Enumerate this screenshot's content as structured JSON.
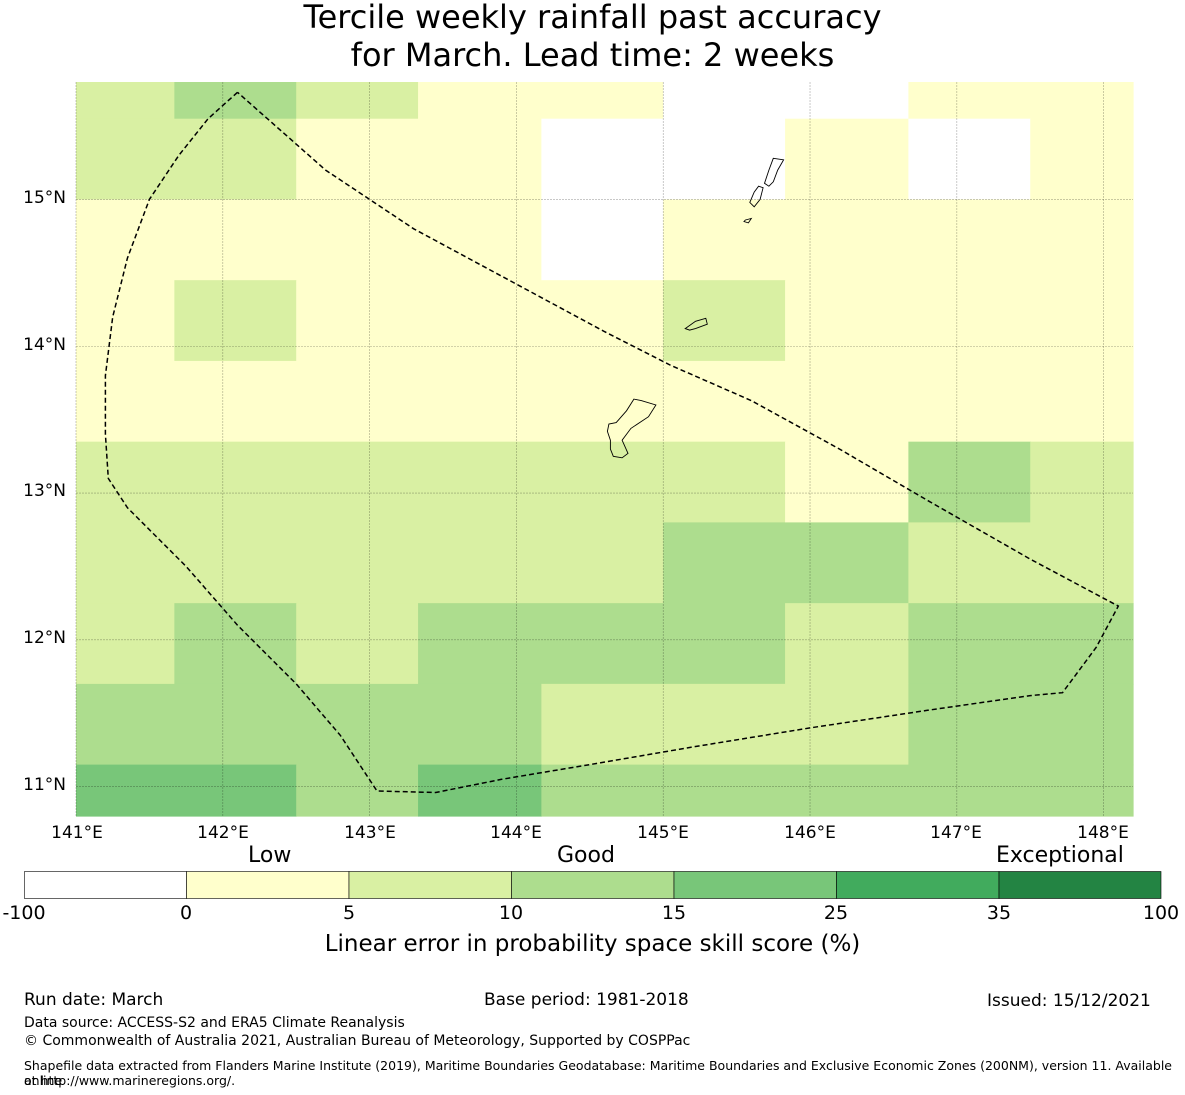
{
  "title": {
    "line1": "Tercile weekly rainfall past accuracy",
    "line2": "for March. Lead time: 2 weeks"
  },
  "map": {
    "lon_range": [
      141.0,
      148.2
    ],
    "lat_range": [
      10.8,
      15.8
    ],
    "lon_ticks": [
      "141°E",
      "142°E",
      "143°E",
      "144°E",
      "145°E",
      "146°E",
      "147°E",
      "148°E"
    ],
    "lat_ticks": [
      "15°N",
      "14°N",
      "13°N",
      "12°N",
      "11°N"
    ],
    "colors": {
      "lt0": "#ffffff",
      "0-5": "#ffffcc",
      "5-10": "#d9f0a3",
      "10-15": "#addd8e",
      "15-25": "#78c679",
      "25-35": "#41ab5d",
      "35-100": "#238443"
    },
    "skill_cells": [
      {
        "lon": [
          141.0,
          141.67
        ],
        "lat": [
          15.55,
          15.8
        ],
        "bin": "5-10"
      },
      {
        "lon": [
          141.67,
          142.5
        ],
        "lat": [
          15.55,
          15.8
        ],
        "bin": "10-15"
      },
      {
        "lon": [
          142.5,
          143.33
        ],
        "lat": [
          15.55,
          15.8
        ],
        "bin": "5-10"
      },
      {
        "lon": [
          143.33,
          145.0
        ],
        "lat": [
          15.55,
          15.8
        ],
        "bin": "0-5"
      },
      {
        "lon": [
          145.0,
          146.67
        ],
        "lat": [
          15.55,
          15.8
        ],
        "bin": "lt0"
      },
      {
        "lon": [
          146.67,
          148.2
        ],
        "lat": [
          15.55,
          15.8
        ],
        "bin": "0-5"
      },
      {
        "lon": [
          141.0,
          142.5
        ],
        "lat": [
          15.0,
          15.55
        ],
        "bin": "5-10"
      },
      {
        "lon": [
          142.5,
          144.17
        ],
        "lat": [
          15.0,
          15.55
        ],
        "bin": "0-5"
      },
      {
        "lon": [
          144.17,
          145.83
        ],
        "lat": [
          15.0,
          15.55
        ],
        "bin": "lt0"
      },
      {
        "lon": [
          145.83,
          146.67
        ],
        "lat": [
          15.0,
          15.55
        ],
        "bin": "0-5"
      },
      {
        "lon": [
          146.67,
          147.5
        ],
        "lat": [
          15.0,
          15.55
        ],
        "bin": "lt0"
      },
      {
        "lon": [
          147.5,
          148.2
        ],
        "lat": [
          15.0,
          15.55
        ],
        "bin": "0-5"
      },
      {
        "lon": [
          141.0,
          144.17
        ],
        "lat": [
          14.45,
          15.0
        ],
        "bin": "0-5"
      },
      {
        "lon": [
          144.17,
          145.0
        ],
        "lat": [
          14.45,
          15.0
        ],
        "bin": "lt0"
      },
      {
        "lon": [
          145.0,
          148.2
        ],
        "lat": [
          14.45,
          15.0
        ],
        "bin": "0-5"
      },
      {
        "lon": [
          141.0,
          141.67
        ],
        "lat": [
          13.9,
          14.45
        ],
        "bin": "0-5"
      },
      {
        "lon": [
          141.67,
          142.5
        ],
        "lat": [
          13.9,
          14.45
        ],
        "bin": "5-10"
      },
      {
        "lon": [
          142.5,
          145.0
        ],
        "lat": [
          13.9,
          14.45
        ],
        "bin": "0-5"
      },
      {
        "lon": [
          145.0,
          145.83
        ],
        "lat": [
          13.9,
          14.45
        ],
        "bin": "5-10"
      },
      {
        "lon": [
          145.83,
          148.2
        ],
        "lat": [
          13.9,
          14.45
        ],
        "bin": "0-5"
      },
      {
        "lon": [
          141.0,
          148.2
        ],
        "lat": [
          13.35,
          13.9
        ],
        "bin": "0-5"
      },
      {
        "lon": [
          141.0,
          145.83
        ],
        "lat": [
          12.8,
          13.35
        ],
        "bin": "5-10"
      },
      {
        "lon": [
          145.83,
          146.67
        ],
        "lat": [
          12.8,
          13.35
        ],
        "bin": "0-5"
      },
      {
        "lon": [
          146.67,
          147.5
        ],
        "lat": [
          12.8,
          13.35
        ],
        "bin": "10-15"
      },
      {
        "lon": [
          147.5,
          148.2
        ],
        "lat": [
          12.8,
          13.35
        ],
        "bin": "5-10"
      },
      {
        "lon": [
          141.0,
          145.0
        ],
        "lat": [
          12.25,
          12.8
        ],
        "bin": "5-10"
      },
      {
        "lon": [
          145.0,
          146.67
        ],
        "lat": [
          12.25,
          12.8
        ],
        "bin": "10-15"
      },
      {
        "lon": [
          146.67,
          148.2
        ],
        "lat": [
          12.25,
          12.8
        ],
        "bin": "5-10"
      },
      {
        "lon": [
          141.0,
          141.67
        ],
        "lat": [
          11.7,
          12.25
        ],
        "bin": "5-10"
      },
      {
        "lon": [
          141.67,
          142.5
        ],
        "lat": [
          11.7,
          12.25
        ],
        "bin": "10-15"
      },
      {
        "lon": [
          142.5,
          143.33
        ],
        "lat": [
          11.7,
          12.25
        ],
        "bin": "5-10"
      },
      {
        "lon": [
          143.33,
          145.83
        ],
        "lat": [
          11.7,
          12.25
        ],
        "bin": "10-15"
      },
      {
        "lon": [
          145.83,
          146.67
        ],
        "lat": [
          11.7,
          12.25
        ],
        "bin": "5-10"
      },
      {
        "lon": [
          146.67,
          148.2
        ],
        "lat": [
          11.7,
          12.25
        ],
        "bin": "10-15"
      },
      {
        "lon": [
          141.0,
          144.17
        ],
        "lat": [
          11.15,
          11.7
        ],
        "bin": "10-15"
      },
      {
        "lon": [
          144.17,
          146.67
        ],
        "lat": [
          11.15,
          11.7
        ],
        "bin": "5-10"
      },
      {
        "lon": [
          146.67,
          148.2
        ],
        "lat": [
          11.15,
          11.7
        ],
        "bin": "10-15"
      },
      {
        "lon": [
          141.0,
          142.5
        ],
        "lat": [
          10.8,
          11.15
        ],
        "bin": "15-25"
      },
      {
        "lon": [
          142.5,
          143.33
        ],
        "lat": [
          10.8,
          11.15
        ],
        "bin": "10-15"
      },
      {
        "lon": [
          143.33,
          144.17
        ],
        "lat": [
          10.8,
          11.15
        ],
        "bin": "15-25"
      },
      {
        "lon": [
          144.17,
          148.2
        ],
        "lat": [
          10.8,
          11.15
        ],
        "bin": "10-15"
      }
    ],
    "eez_boundary": [
      [
        142.1,
        15.73
      ],
      [
        141.9,
        15.55
      ],
      [
        141.7,
        15.3
      ],
      [
        141.5,
        15.0
      ],
      [
        141.35,
        14.6
      ],
      [
        141.25,
        14.2
      ],
      [
        141.2,
        13.8
      ],
      [
        141.2,
        13.4
      ],
      [
        141.22,
        13.1
      ],
      [
        141.35,
        12.9
      ],
      [
        141.75,
        12.5
      ],
      [
        142.1,
        12.1
      ],
      [
        142.5,
        11.7
      ],
      [
        142.8,
        11.35
      ],
      [
        143.05,
        10.97
      ],
      [
        143.45,
        10.96
      ],
      [
        143.9,
        11.05
      ],
      [
        144.5,
        11.15
      ],
      [
        145.2,
        11.27
      ],
      [
        146.0,
        11.4
      ],
      [
        146.8,
        11.52
      ],
      [
        147.5,
        11.62
      ],
      [
        147.72,
        11.64
      ],
      [
        147.95,
        11.95
      ],
      [
        148.1,
        12.23
      ],
      [
        147.5,
        12.55
      ],
      [
        146.8,
        12.95
      ],
      [
        146.2,
        13.3
      ],
      [
        145.6,
        13.63
      ],
      [
        145.05,
        13.87
      ],
      [
        144.6,
        14.1
      ],
      [
        143.95,
        14.45
      ],
      [
        143.3,
        14.8
      ],
      [
        142.7,
        15.2
      ],
      [
        142.1,
        15.73
      ]
    ],
    "islands": [
      [
        [
          144.85,
          13.63
        ],
        [
          144.95,
          13.6
        ],
        [
          144.9,
          13.52
        ],
        [
          144.78,
          13.44
        ],
        [
          144.72,
          13.36
        ],
        [
          144.76,
          13.27
        ],
        [
          144.72,
          13.24
        ],
        [
          144.66,
          13.25
        ],
        [
          144.64,
          13.3
        ],
        [
          144.64,
          13.36
        ],
        [
          144.62,
          13.42
        ],
        [
          144.63,
          13.47
        ],
        [
          144.68,
          13.48
        ],
        [
          144.75,
          13.56
        ],
        [
          144.8,
          13.64
        ],
        [
          144.85,
          13.63
        ]
      ],
      [
        [
          145.15,
          14.12
        ],
        [
          145.22,
          14.17
        ],
        [
          145.29,
          14.19
        ],
        [
          145.3,
          14.15
        ],
        [
          145.22,
          14.12
        ],
        [
          145.18,
          14.11
        ],
        [
          145.15,
          14.12
        ]
      ],
      [
        [
          145.75,
          15.28
        ],
        [
          145.82,
          15.27
        ],
        [
          145.78,
          15.2
        ],
        [
          145.75,
          15.12
        ],
        [
          145.72,
          15.09
        ],
        [
          145.69,
          15.11
        ],
        [
          145.72,
          15.2
        ],
        [
          145.75,
          15.28
        ]
      ],
      [
        [
          145.65,
          15.09
        ],
        [
          145.68,
          15.08
        ],
        [
          145.66,
          15.0
        ],
        [
          145.62,
          14.95
        ],
        [
          145.59,
          14.98
        ],
        [
          145.62,
          15.05
        ],
        [
          145.65,
          15.09
        ]
      ],
      [
        [
          145.56,
          14.86
        ],
        [
          145.6,
          14.87
        ],
        [
          145.58,
          14.84
        ],
        [
          145.55,
          14.85
        ],
        [
          145.56,
          14.86
        ]
      ]
    ]
  },
  "colorbar": {
    "categories": [
      "Low",
      "Good",
      "Exceptional"
    ],
    "ticks": [
      "-100",
      "0",
      "5",
      "10",
      "15",
      "25",
      "35",
      "100"
    ],
    "label": "Linear error in probability space skill score (%)"
  },
  "footer": {
    "run_date": "Run date: March",
    "base_period": "Base period: 1981-2018",
    "issued": "Issued: 15/12/2021",
    "data_source": "Data source: ACCESS-S2 and ERA5 Climate Reanalysis",
    "copyright": "© Commonwealth of Australia 2021, Australian Bureau of Meteorology, Supported by COSPPac",
    "shapefile_1": "Shapefile data extracted from Flanders Marine Institute (2019), Maritime Boundaries Geodatabase: Maritime Boundaries and Exclusive Economic Zones (200NM), version 11. Available online",
    "shapefile_2": "at http://www.marineregions.org/."
  }
}
